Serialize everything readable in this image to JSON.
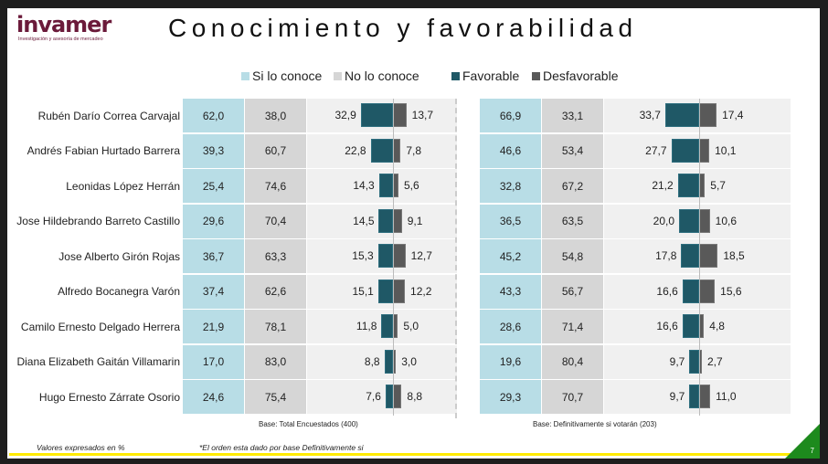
{
  "logo": {
    "name": "invamer",
    "tagline": "Investigación y asesoría de mercadeo"
  },
  "title": "Conocimiento y favorabilidad",
  "legend": [
    {
      "label": "Si lo conoce",
      "color": "#b8dde6"
    },
    {
      "label": "No lo conoce",
      "color": "#d6d6d6"
    },
    {
      "label": "Favorable",
      "color": "#1f5866"
    },
    {
      "label": "Desfavorable",
      "color": "#595959"
    }
  ],
  "chart_data": {
    "type": "table",
    "title": "Conocimiento y favorabilidad",
    "candidates": [
      "Rubén Darío Correa Carvajal",
      "Andrés Fabian Hurtado Barrera",
      "Leonidas López Herrán",
      "Jose Hildebrando Barreto Castillo",
      "Jose Alberto Girón Rojas",
      "Alfredo Bocanegra Varón",
      "Camilo Ernesto Delgado Herrera",
      "Diana Elizabeth Gaitán Villamarin",
      "Hugo Ernesto Zárrate Osorio"
    ],
    "blocks": [
      {
        "base": "Base: Total Encuestados (400)",
        "si": [
          "62,0",
          "39,3",
          "25,4",
          "29,6",
          "36,7",
          "37,4",
          "21,9",
          "17,0",
          "24,6"
        ],
        "no": [
          "38,0",
          "60,7",
          "74,6",
          "70,4",
          "63,3",
          "62,6",
          "78,1",
          "83,0",
          "75,4"
        ],
        "favorable": [
          "32,9",
          "22,8",
          "14,3",
          "14,5",
          "15,3",
          "15,1",
          "11,8",
          "8,8",
          "7,6"
        ],
        "desfavorable": [
          "13,7",
          "7,8",
          "5,6",
          "9,1",
          "12,7",
          "12,2",
          "5,0",
          "3,0",
          "8,8"
        ]
      },
      {
        "base": "Base: Definitivamente si votarán (203)",
        "si": [
          "66,9",
          "46,6",
          "32,8",
          "36,5",
          "45,2",
          "43,3",
          "28,6",
          "19,6",
          "29,3"
        ],
        "no": [
          "33,1",
          "53,4",
          "67,2",
          "63,5",
          "54,8",
          "56,7",
          "71,4",
          "80,4",
          "70,7"
        ],
        "favorable": [
          "33,7",
          "27,7",
          "21,2",
          "20,0",
          "17,8",
          "16,6",
          "16,6",
          "9,7",
          "9,7"
        ],
        "desfavorable": [
          "17,4",
          "10,1",
          "5,7",
          "10,6",
          "18,5",
          "15,6",
          "4,8",
          "2,7",
          "11,0"
        ]
      }
    ]
  },
  "footer": {
    "note1": "Valores expresados en %",
    "note2": "*El orden esta dado por base Definitivamente si",
    "page": "7"
  }
}
